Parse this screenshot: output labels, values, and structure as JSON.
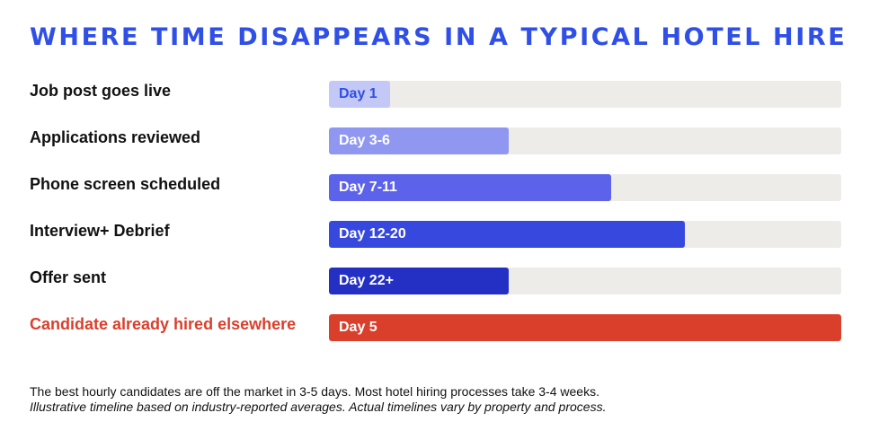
{
  "chart_data": {
    "type": "bar",
    "orientation": "horizontal",
    "title": "WHERE TIME DISAPPEARS IN A TYPICAL HOTEL HIRE",
    "categories": [
      "Job post goes live",
      "Applications reviewed",
      "Phone screen scheduled",
      "Interview+ Debrief",
      "Offer sent",
      "Candidate already hired elsewhere"
    ],
    "bar_labels": [
      "Day 1",
      "Day 3-6",
      "Day 7-11",
      "Day 12-20",
      "Day 22+",
      "Day 5"
    ],
    "values": [
      0.12,
      0.35,
      0.55,
      0.695,
      0.35,
      1.0
    ],
    "value_scale": "fraction of full bar track",
    "bar_colors": [
      "#c3c8f7",
      "#8f97f0",
      "#5c63ea",
      "#3648dd",
      "#2430c4",
      "#da3f2c"
    ],
    "bar_label_colors": [
      "#2f4fe6",
      "#ffffff",
      "#ffffff",
      "#ffffff",
      "#ffffff",
      "#ffffff"
    ],
    "category_label_colors": [
      "#111111",
      "#111111",
      "#111111",
      "#111111",
      "#111111",
      "#da3f2c"
    ],
    "track_color": "#eeece8",
    "title_color": "#2f4fe6",
    "grid": false,
    "legend": "none"
  },
  "footnotes": {
    "line1": "The best hourly candidates are off the market in 3-5 days. Most hotel hiring processes take 3-4 weeks.",
    "line2": "Illustrative timeline based on industry-reported averages. Actual timelines vary by property and process."
  }
}
